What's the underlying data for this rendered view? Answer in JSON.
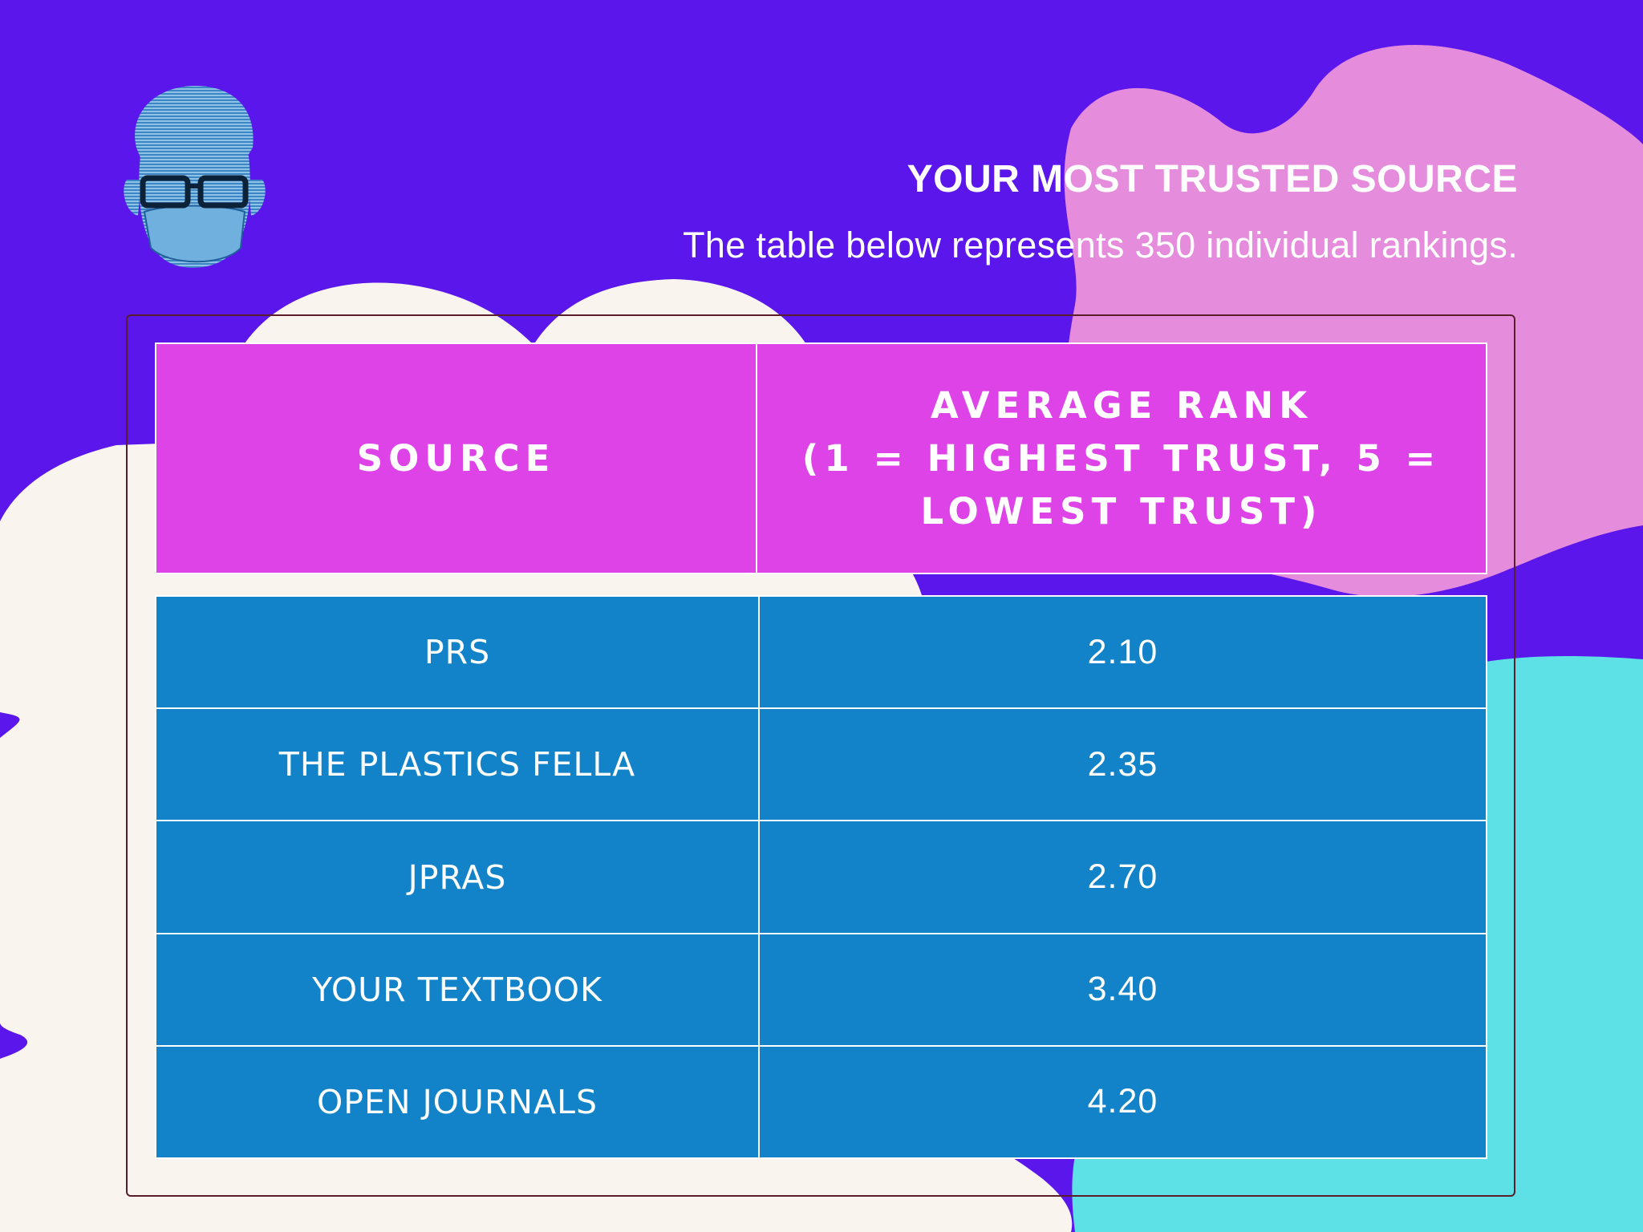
{
  "header": {
    "title": "YOUR MOST TRUSTED SOURCE",
    "subtitle": "The table below represents 350 individual rankings."
  },
  "colors": {
    "background": "#5b16ec",
    "blob_cream": "#f9f4ee",
    "blob_pink": "#e58cdc",
    "blob_cyan": "#5ee1e6",
    "header_cell": "#de43e8",
    "body_cell": "#1282c9"
  },
  "avatar": {
    "icon": "masked-man-with-glasses-icon"
  },
  "chart_data": {
    "type": "table",
    "columns": [
      "SOURCE",
      "AVERAGE RANK\n(1 = HIGHEST TRUST, 5 =\nLOWEST TRUST)"
    ],
    "rows": [
      {
        "source": "PRS",
        "rank": "2.10"
      },
      {
        "source": "THE PLASTICS FELLA",
        "rank": "2.35"
      },
      {
        "source": "JPRAS",
        "rank": "2.70"
      },
      {
        "source": "YOUR TEXTBOOK",
        "rank": "3.40"
      },
      {
        "source": "OPEN JOURNALS",
        "rank": "4.20"
      }
    ]
  }
}
